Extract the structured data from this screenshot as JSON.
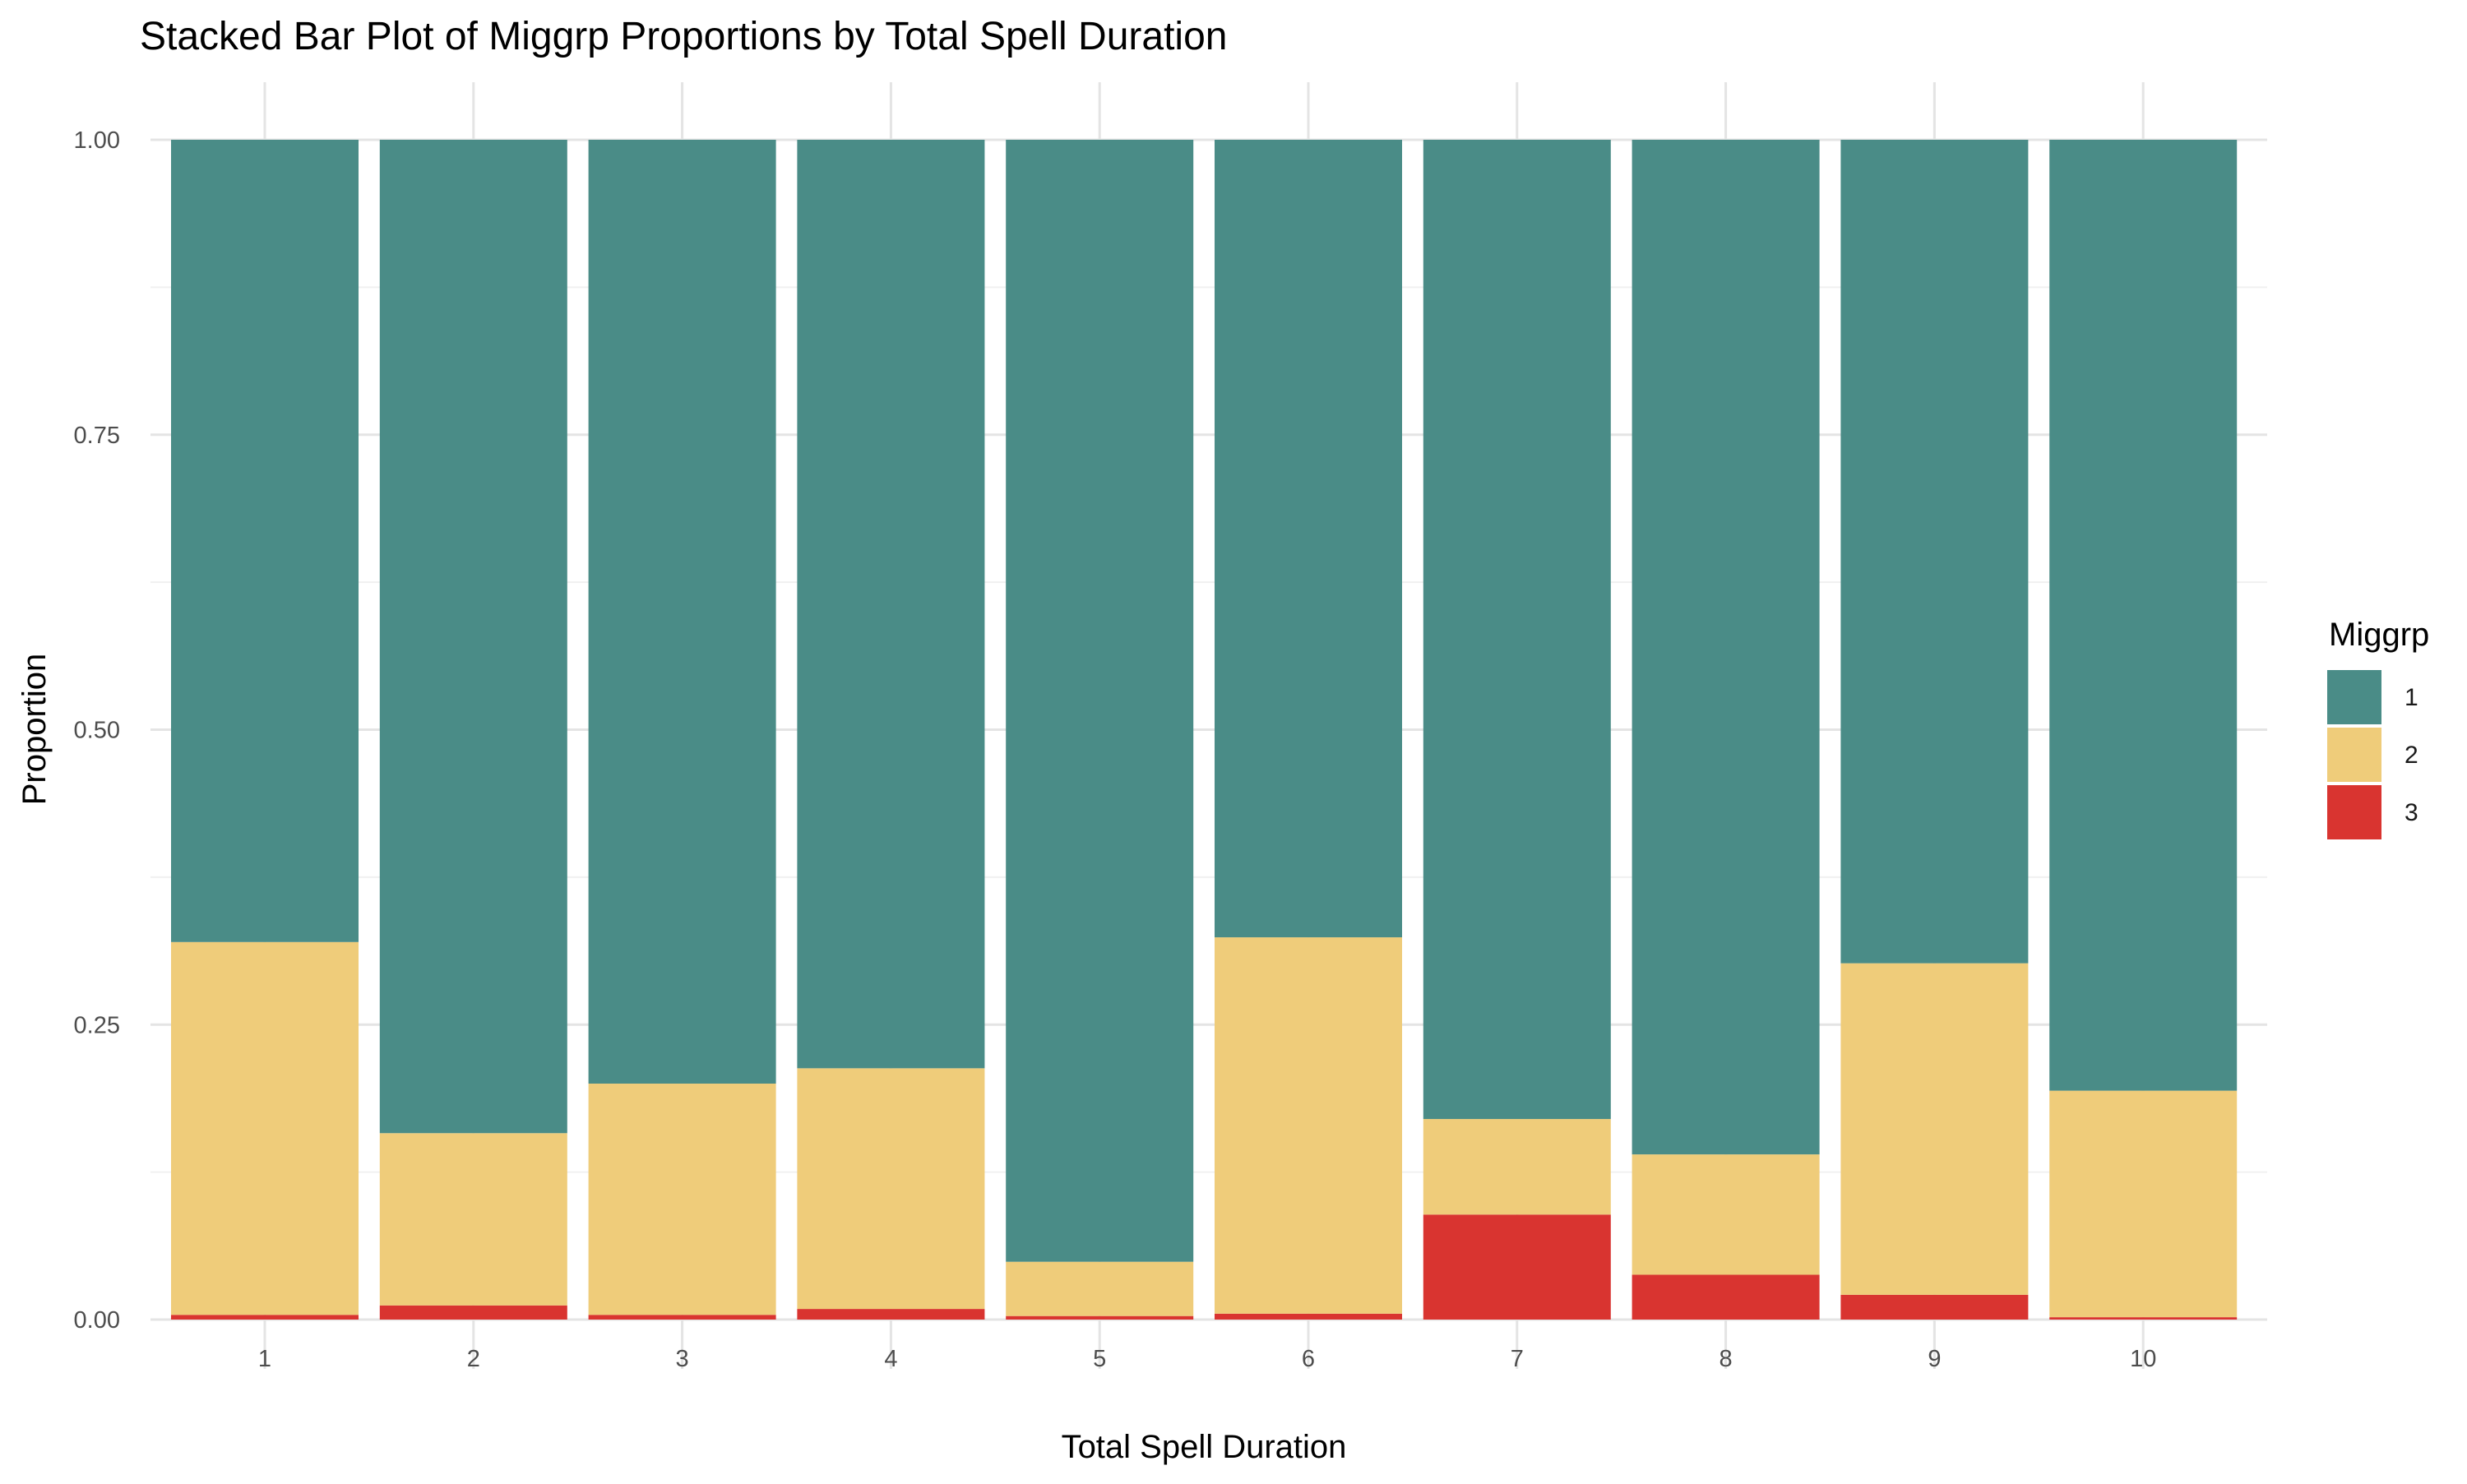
{
  "chart_data": {
    "type": "bar",
    "stacked": true,
    "title": "Stacked Bar Plot of Miggrp Proportions by Total Spell Duration",
    "xlabel": "Total Spell Duration",
    "ylabel": "Proportion",
    "categories": [
      "1",
      "2",
      "3",
      "4",
      "5",
      "6",
      "7",
      "8",
      "9",
      "10"
    ],
    "y_ticks": [
      "0.00",
      "0.25",
      "0.50",
      "0.75",
      "1.00"
    ],
    "ylim": [
      0,
      1
    ],
    "grid": true,
    "legend": {
      "title": "Miggrp",
      "position": "right"
    },
    "series": [
      {
        "name": "1",
        "color": "#4a8c87",
        "values": [
          0.68,
          0.842,
          0.8,
          0.787,
          0.951,
          0.676,
          0.83,
          0.86,
          0.698,
          0.806
        ]
      },
      {
        "name": "2",
        "color": "#efcc7a",
        "values": [
          0.316,
          0.146,
          0.196,
          0.204,
          0.046,
          0.319,
          0.081,
          0.102,
          0.281,
          0.192
        ]
      },
      {
        "name": "3",
        "color": "#d93430",
        "values": [
          0.004,
          0.012,
          0.004,
          0.009,
          0.003,
          0.005,
          0.089,
          0.038,
          0.021,
          0.002
        ]
      }
    ]
  }
}
